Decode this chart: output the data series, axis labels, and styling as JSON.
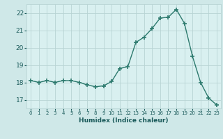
{
  "x": [
    0,
    1,
    2,
    3,
    4,
    5,
    6,
    7,
    8,
    9,
    10,
    11,
    12,
    13,
    14,
    15,
    16,
    17,
    18,
    19,
    20,
    21,
    22,
    23
  ],
  "y": [
    18.1,
    18.0,
    18.1,
    18.0,
    18.1,
    18.1,
    18.0,
    17.85,
    17.75,
    17.8,
    18.05,
    18.8,
    18.9,
    20.3,
    20.6,
    21.1,
    21.7,
    21.75,
    22.2,
    21.4,
    19.5,
    18.0,
    17.1,
    16.7
  ],
  "xlabel": "Humidex (Indice chaleur)",
  "ylim": [
    16.5,
    22.5
  ],
  "xlim": [
    -0.5,
    23.5
  ],
  "yticks": [
    17,
    18,
    19,
    20,
    21,
    22
  ],
  "xtick_labels": [
    "0",
    "1",
    "2",
    "3",
    "4",
    "5",
    "6",
    "7",
    "8",
    "9",
    "10",
    "11",
    "12",
    "13",
    "14",
    "15",
    "16",
    "17",
    "18",
    "19",
    "20",
    "21",
    "22",
    "23"
  ],
  "line_color": "#2d7a6e",
  "marker": "+",
  "marker_size": 4,
  "bg_color": "#cfe8e8",
  "plot_bg_color": "#d9f0f0",
  "grid_color": "#b8d4d4",
  "label_color": "#1a5a5a",
  "tick_color": "#1a5a5a"
}
